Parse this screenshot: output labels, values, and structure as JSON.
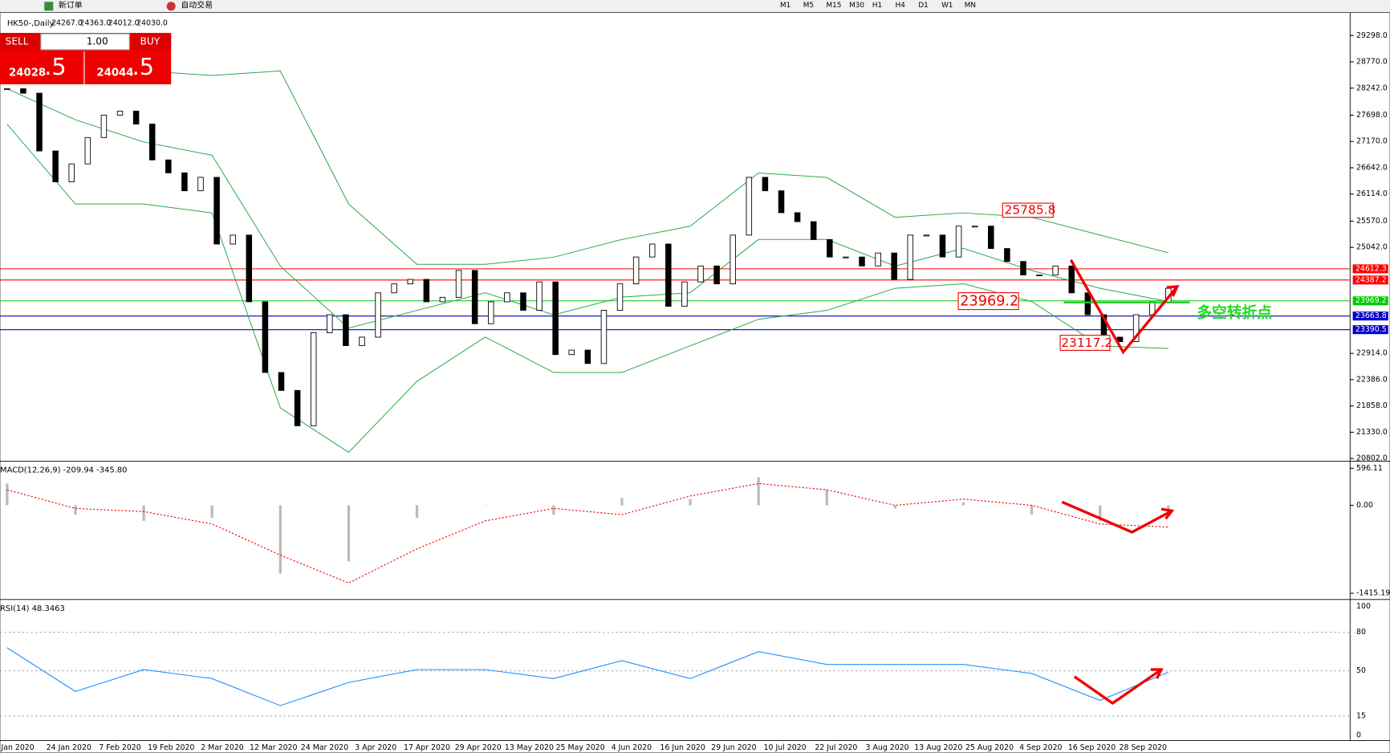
{
  "toolbar": {
    "new_order": "新订单",
    "auto_trading": "自动交易",
    "timeframes": [
      "M1",
      "M5",
      "M15",
      "M30",
      "H1",
      "H4",
      "D1",
      "W1",
      "MN"
    ]
  },
  "header": {
    "symbol": "HK50-,Daily",
    "ohlc": [
      "24267.0",
      "24363.0",
      "24012.0",
      "24030.0"
    ]
  },
  "trade": {
    "sell": "SELL",
    "buy": "BUY",
    "volume": "1.00",
    "sell_price": {
      "main": "24028",
      "fraction": ".5"
    },
    "buy_price": {
      "main": "24044",
      "fraction": ".5"
    }
  },
  "price": {
    "ticks": [
      {
        "value": 29298,
        "label": "29298.0"
      },
      {
        "value": 28770,
        "label": "28770.0"
      },
      {
        "value": 28242,
        "label": "28242.0"
      },
      {
        "value": 27698,
        "label": "27698.0"
      },
      {
        "value": 27170,
        "label": "27170.0"
      },
      {
        "value": 26642,
        "label": "26642.0"
      },
      {
        "value": 26114,
        "label": "26114.0"
      },
      {
        "value": 25570,
        "label": "25570.0"
      },
      {
        "value": 25042,
        "label": "25042.0"
      },
      {
        "value": 22914,
        "label": "22914.0"
      },
      {
        "value": 22386,
        "label": "22386.0"
      },
      {
        "value": 21858,
        "label": "21858.0"
      },
      {
        "value": 21330,
        "label": "21330.0"
      },
      {
        "value": 20802,
        "label": "20802.0"
      }
    ],
    "lines": [
      {
        "value": 24612.3,
        "color": "#ff0000"
      },
      {
        "value": 24387.2,
        "color": "#ff0000"
      },
      {
        "value": 23969.2,
        "color": "#00cc00"
      },
      {
        "value": 23663.8,
        "color": "#0000cc"
      },
      {
        "value": 23390.5,
        "color": "#0000cc"
      }
    ],
    "closes": [
      28230,
      28140,
      26980,
      26360,
      26720,
      27250,
      27700,
      27780,
      27520,
      26800,
      26540,
      26180,
      26450,
      25110,
      25290,
      23950,
      22530,
      22170,
      21460,
      23330,
      23690,
      23070,
      23240,
      24130,
      24310,
      24400,
      23950,
      24040,
      24580,
      23510,
      23950,
      24130,
      23780,
      24350,
      22890,
      22980,
      22710,
      23780,
      24310,
      24850,
      25110,
      23860,
      24350,
      24670,
      24310,
      25290,
      26450,
      26180,
      25740,
      25560,
      25200,
      24850,
      24850,
      24670,
      24930,
      24400,
      25290,
      25290,
      24850,
      25470,
      25470,
      25020,
      24760,
      24490,
      24490,
      24670,
      24130,
      23690,
      23240,
      23150,
      23690,
      23950,
      24220
    ],
    "bollinger": {
      "upper": [
        28942,
        28497,
        28586,
        28497,
        28586,
        25914,
        24703,
        24703,
        24845,
        25202,
        25469,
        26538,
        26448,
        25647,
        25736,
        25647,
        25290,
        24934
      ],
      "middle": [
        28229,
        27606,
        27161,
        26894,
        24667,
        23421,
        23777,
        24133,
        23688,
        24044,
        24133,
        25202,
        25202,
        24667,
        25023,
        24578,
        24222,
        23955
      ],
      "lower": [
        27517,
        25914,
        25914,
        25736,
        21818,
        20927,
        22352,
        23243,
        22530,
        22530,
        23065,
        23599,
        23777,
        24222,
        24311,
        23955,
        23065,
        23011
      ]
    }
  },
  "annotations": {
    "high": "25785.8",
    "pivot": "23969.2",
    "low": "23117.2",
    "turning_point": "多空转折点"
  },
  "macd": {
    "title": "MACD(12,26,9) -209.94 -345.80",
    "ticks": [
      596.11,
      {
        "value": 0,
        "label": "0.00"
      },
      -1415.19
    ],
    "histogram": [
      350,
      -150,
      -250,
      -200,
      -1100,
      -900,
      -200,
      0,
      -150,
      120,
      100,
      450,
      250,
      -50,
      50,
      -150,
      -250,
      -150
    ],
    "signal": [
      250,
      -50,
      -100,
      -300,
      -800,
      -1250,
      -700,
      -250,
      -50,
      -150,
      150,
      350,
      250,
      0,
      100,
      0,
      -300,
      -350
    ]
  },
  "rsi": {
    "title": "RSI(14) 48.3463",
    "ticks": [
      100,
      80,
      50,
      15,
      0
    ],
    "values": [
      68,
      34,
      51,
      44,
      23,
      41,
      51,
      51,
      44,
      58,
      44,
      65,
      55,
      55,
      55,
      48,
      27,
      49
    ]
  },
  "dates": [
    "Jan 2020",
    "24 Jan 2020",
    "7 Feb 2020",
    "19 Feb 2020",
    "2 Mar 2020",
    "12 Mar 2020",
    "24 Mar 2020",
    "3 Apr 2020",
    "17 Apr 2020",
    "29 Apr 2020",
    "13 May 2020",
    "25 May 2020",
    "4 Jun 2020",
    "16 Jun 2020",
    "29 Jun 2020",
    "10 Jul 2020",
    "22 Jul 2020",
    "3 Aug 2020",
    "13 Aug 2020",
    "25 Aug 2020",
    "4 Sep 2020",
    "16 Sep 2020",
    "28 Sep 2020"
  ]
}
